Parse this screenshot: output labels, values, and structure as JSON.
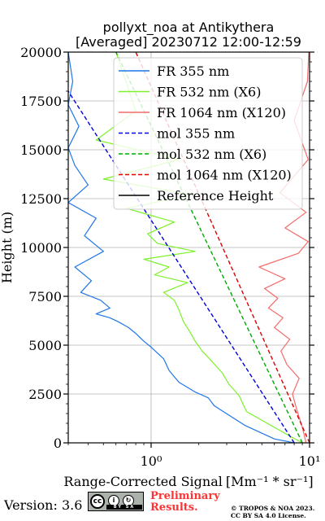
{
  "chart_data": {
    "type": "line",
    "title_line1": "pollyxt_noa at Antikythera",
    "title_line2": "[Averaged] 20230712 12:00-12:59",
    "xlabel": "Range-Corrected Signal",
    "xlabel_units": "[Mm⁻¹ * sr⁻¹]",
    "ylabel": "Height (m)",
    "x_scale": "log",
    "xlim": [
      0.3,
      10
    ],
    "ylim": [
      0,
      20000
    ],
    "x_ticks": [
      {
        "value": 1,
        "label": "10⁰"
      },
      {
        "value": 10,
        "label": "10¹"
      }
    ],
    "y_ticks": [
      0,
      2500,
      5000,
      7500,
      10000,
      12500,
      15000,
      17500,
      20000
    ],
    "grid": true,
    "legend_position": "top-right",
    "series": [
      {
        "name": "FR 355 nm",
        "style": "solid",
        "color": "#1f77e8",
        "x": [
          8.0,
          6.0,
          3.9,
          2.5,
          2.3,
          1.9,
          1.5,
          1.3,
          1.2,
          1.0,
          0.9,
          0.8,
          0.72,
          0.62,
          0.55,
          0.45,
          0.55,
          0.48,
          0.36,
          0.42,
          0.33,
          0.5,
          0.38,
          0.45,
          0.3,
          0.4,
          0.33,
          0.3,
          0.35,
          0.3,
          0.32,
          0.3
        ],
        "y": [
          0,
          200,
          900,
          1900,
          2300,
          2600,
          3100,
          3700,
          4300,
          4900,
          5200,
          5600,
          5900,
          6200,
          6400,
          6600,
          6900,
          7300,
          7700,
          8300,
          9000,
          9800,
          10600,
          11500,
          12300,
          13200,
          14200,
          15100,
          16200,
          17300,
          18500,
          20000
        ]
      },
      {
        "name": "FR 532 nm (X6)",
        "style": "solid",
        "color": "#7cf22a",
        "x": [
          9.0,
          7.5,
          4.0,
          3.6,
          3.1,
          2.8,
          2.4,
          2.1,
          1.9,
          1.75,
          1.6,
          1.5,
          1.4,
          1.2,
          1.7,
          1.05,
          1.3,
          0.9,
          1.9,
          1.1,
          0.95,
          1.4,
          0.7,
          1.8,
          0.5,
          1.5,
          0.45,
          0.8,
          0.6
        ],
        "y": [
          0,
          350,
          1600,
          2400,
          3000,
          3600,
          4200,
          4700,
          5200,
          5700,
          6200,
          6800,
          7300,
          7700,
          8200,
          8600,
          9000,
          9400,
          9800,
          10200,
          10700,
          11300,
          12000,
          12700,
          13500,
          14500,
          15500,
          17000,
          20000
        ]
      },
      {
        "name": "FR 1064 nm (X120)",
        "style": "solid",
        "color": "#f46b6b",
        "x": [
          9.5,
          9.0,
          8.3,
          7.8,
          8.6,
          7.2,
          6.6,
          7.5,
          6.0,
          6.8,
          5.5,
          6.3,
          5.2,
          7.0,
          4.8,
          8.5,
          9.8,
          7.0,
          9.5,
          6.5,
          9.8,
          8.0,
          9.7,
          9.9
        ],
        "y": [
          0,
          800,
          1700,
          2500,
          3300,
          4000,
          4700,
          5300,
          5900,
          6400,
          6900,
          7400,
          7900,
          8400,
          9000,
          9700,
          10300,
          11000,
          11800,
          12800,
          14500,
          16500,
          18500,
          20000
        ]
      },
      {
        "name": "mol 355 nm",
        "style": "dashed",
        "color": "#0000dd",
        "x": [
          8.0,
          0.3
        ],
        "y": [
          0,
          18000
        ]
      },
      {
        "name": "mol 532 nm (X6)",
        "style": "dashed",
        "color": "#00aa00",
        "x": [
          9.0,
          0.6
        ],
        "y": [
          0,
          20000
        ]
      },
      {
        "name": "mol 1064 nm (X120)",
        "style": "dashed",
        "color": "#dd0000",
        "x": [
          10.0,
          0.8
        ],
        "y": [
          0,
          20000
        ]
      },
      {
        "name": "Reference Height",
        "style": "solid",
        "color": "#000000",
        "x": [],
        "y": []
      }
    ]
  },
  "footer": {
    "version": "Version: 3.6",
    "license_badge": {
      "cc": "cc",
      "by": "BY",
      "sa": "SA"
    },
    "preliminary_line1": "Preliminary",
    "preliminary_line2": "Results.",
    "copyright_line1": "© TROPOS & NOA 2023.",
    "copyright_line2": "CC BY SA 4.0 License."
  }
}
